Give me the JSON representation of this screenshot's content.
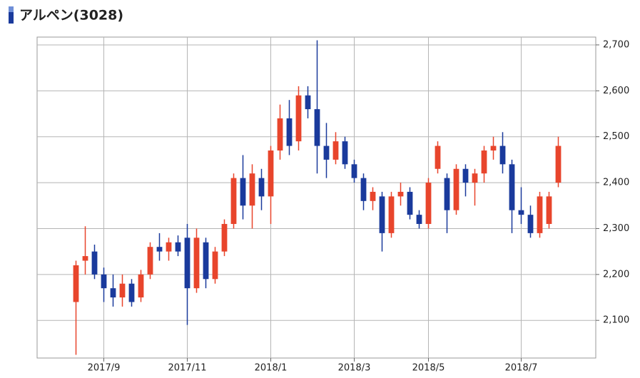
{
  "chart_data": {
    "type": "candlestick",
    "title": "アルペン(3028)",
    "categories": [
      null,
      null,
      null,
      "2017/9",
      null,
      null,
      null,
      null,
      null,
      null,
      null,
      null,
      "2017/11",
      null,
      null,
      null,
      null,
      null,
      null,
      null,
      null,
      "2018/1",
      null,
      null,
      null,
      null,
      null,
      null,
      null,
      null,
      "2018/3",
      null,
      null,
      null,
      null,
      null,
      null,
      null,
      "2018/5",
      null,
      null,
      null,
      null,
      null,
      null,
      null,
      null,
      null,
      "2018/7",
      null,
      null,
      null,
      null
    ],
    "open": [
      2140,
      2230,
      2250,
      2200,
      2170,
      2150,
      2180,
      2150,
      2200,
      2260,
      2250,
      2270,
      2280,
      2170,
      2270,
      2190,
      2250,
      2310,
      2410,
      2350,
      2410,
      2370,
      2470,
      2540,
      2490,
      2590,
      2560,
      2480,
      2450,
      2490,
      2440,
      2410,
      2360,
      2370,
      2290,
      2370,
      2380,
      2330,
      2310,
      2430,
      2410,
      2340,
      2430,
      2400,
      2420,
      2470,
      2480,
      2440,
      2340,
      2330,
      2290,
      2310,
      2400
    ],
    "high": [
      2230,
      2305,
      2265,
      2215,
      2200,
      2200,
      2190,
      2210,
      2270,
      2290,
      2280,
      2285,
      2310,
      2300,
      2280,
      2260,
      2320,
      2420,
      2460,
      2440,
      2430,
      2480,
      2570,
      2580,
      2610,
      2610,
      2710,
      2530,
      2510,
      2500,
      2450,
      2420,
      2390,
      2380,
      2380,
      2400,
      2390,
      2340,
      2410,
      2490,
      2420,
      2440,
      2440,
      2430,
      2480,
      2500,
      2510,
      2450,
      2390,
      2350,
      2380,
      2380,
      2500
    ],
    "low": [
      2025,
      2200,
      2190,
      2140,
      2130,
      2130,
      2130,
      2140,
      2190,
      2230,
      2230,
      2240,
      2090,
      2160,
      2170,
      2180,
      2240,
      2300,
      2320,
      2300,
      2340,
      2310,
      2450,
      2460,
      2470,
      2540,
      2420,
      2410,
      2440,
      2430,
      2400,
      2340,
      2340,
      2250,
      2280,
      2350,
      2320,
      2300,
      2300,
      2420,
      2290,
      2330,
      2370,
      2350,
      2400,
      2450,
      2420,
      2290,
      2310,
      2280,
      2280,
      2300,
      2390
    ],
    "close": [
      2220,
      2240,
      2200,
      2170,
      2150,
      2180,
      2140,
      2200,
      2260,
      2250,
      2270,
      2250,
      2170,
      2280,
      2190,
      2250,
      2310,
      2410,
      2350,
      2420,
      2370,
      2470,
      2540,
      2480,
      2590,
      2560,
      2480,
      2450,
      2490,
      2440,
      2410,
      2360,
      2380,
      2290,
      2370,
      2380,
      2330,
      2310,
      2400,
      2480,
      2340,
      2430,
      2400,
      2420,
      2470,
      2480,
      2440,
      2340,
      2330,
      2290,
      2370,
      2370,
      2480
    ],
    "up_color": "#e8452c",
    "down_color": "#1a3a9c",
    "ylim": [
      2018,
      2717
    ],
    "yticks": [
      {
        "value": 2100,
        "label": "2,100"
      },
      {
        "value": 2200,
        "label": "2,200"
      },
      {
        "value": 2300,
        "label": "2,300"
      },
      {
        "value": 2400,
        "label": "2,400"
      },
      {
        "value": 2500,
        "label": "2,500"
      },
      {
        "value": 2600,
        "label": "2,600"
      },
      {
        "value": 2700,
        "label": "2,700"
      }
    ],
    "grid": true
  }
}
